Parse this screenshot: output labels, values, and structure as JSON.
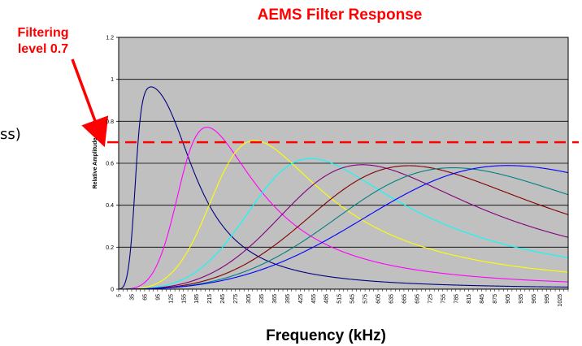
{
  "annotation": {
    "line1": "Filtering",
    "line2": "level 0.7",
    "color": "#ff0000"
  },
  "side_fragment": "ss)",
  "chart_data": {
    "type": "line",
    "title": "AEMS Filter Response",
    "xlabel": "Frequency (kHz)",
    "ylabel": "Relative Amplitude",
    "ylim": [
      0,
      1.2
    ],
    "yticks": [
      0,
      0.2,
      0.4,
      0.6,
      0.8,
      1,
      1.2
    ],
    "ytick_labels": [
      "0",
      "0.2",
      "0.4",
      "0.6",
      "0.8",
      "1",
      "1.2"
    ],
    "x_range_khz": [
      5,
      1045
    ],
    "x_tick_labels": [
      "5",
      "35",
      "65",
      "95",
      "125",
      "155",
      "185",
      "215",
      "245",
      "275",
      "305",
      "335",
      "365",
      "395",
      "425",
      "455",
      "485",
      "515",
      "545",
      "575",
      "605",
      "635",
      "665",
      "695",
      "725",
      "755",
      "785",
      "815",
      "845",
      "875",
      "905",
      "935",
      "965",
      "995",
      "1025"
    ],
    "grid": "horizontal",
    "plot_background": "#c0c0c0",
    "threshold": {
      "value": 0.7,
      "style": "dashed",
      "color": "#ff0000"
    },
    "series": [
      {
        "color": "#000080",
        "low_cutoff_khz": 50,
        "high_cutoff_khz": 152,
        "low_order": 3.8,
        "high_order": 2.4
      },
      {
        "color": "#ff00ff",
        "low_cutoff_khz": 170,
        "high_cutoff_khz": 257,
        "low_order": 3.6,
        "high_order": 2.4
      },
      {
        "color": "#ffff00",
        "low_cutoff_khz": 270,
        "high_cutoff_khz": 367,
        "low_order": 3.4,
        "high_order": 2.4
      },
      {
        "color": "#00ffff",
        "low_cutoff_khz": 400,
        "high_cutoff_khz": 477,
        "low_order": 3.2,
        "high_order": 2.4
      },
      {
        "color": "#800080",
        "low_cutoff_khz": 517,
        "high_cutoff_khz": 593,
        "low_order": 3.0,
        "high_order": 2.4
      },
      {
        "color": "#800000",
        "low_cutoff_khz": 618,
        "high_cutoff_khz": 706,
        "low_order": 2.9,
        "high_order": 2.4
      },
      {
        "color": "#008080",
        "low_cutoff_khz": 718,
        "high_cutoff_khz": 810,
        "low_order": 2.8,
        "high_order": 2.4
      },
      {
        "color": "#0000ff",
        "low_cutoff_khz": 834,
        "high_cutoff_khz": 963,
        "low_order": 2.6,
        "high_order": 2.4
      }
    ]
  }
}
